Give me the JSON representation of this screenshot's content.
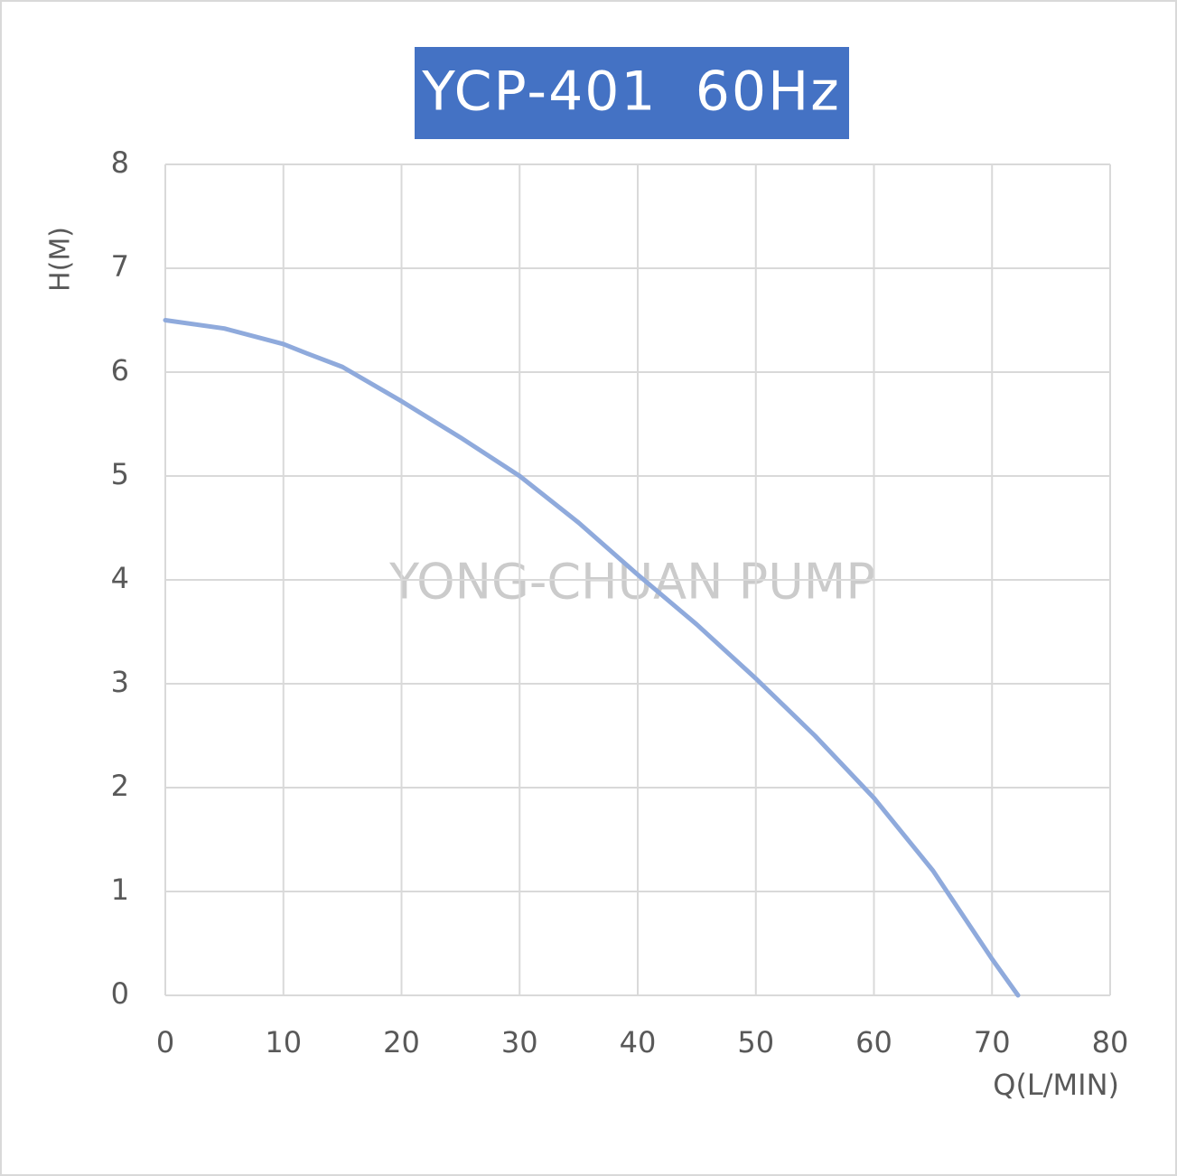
{
  "chart_data": {
    "type": "line",
    "title": "YCP-401  60Hz",
    "annotation": "YONG-CHUAN PUMP",
    "x_label": "Q(L/MIN)",
    "y_label": "H(M)",
    "x": [
      0,
      5,
      10,
      12,
      15,
      20,
      25,
      30,
      35,
      40,
      45,
      50,
      55,
      60,
      65,
      70,
      72.2
    ],
    "series": [
      {
        "name": "H",
        "color": "#8faadc",
        "values": [
          6.5,
          6.42,
          6.27,
          6.18,
          6.05,
          5.72,
          5.37,
          5.0,
          4.55,
          4.05,
          3.57,
          3.05,
          2.5,
          1.9,
          1.2,
          0.35,
          0
        ]
      }
    ],
    "xlim": [
      0,
      80
    ],
    "xticks": [
      0,
      10,
      20,
      30,
      40,
      50,
      60,
      70,
      80
    ],
    "ylim": [
      0,
      8
    ],
    "yticks": [
      0,
      1,
      2,
      3,
      4,
      5,
      6,
      7,
      8
    ],
    "grid": true
  }
}
